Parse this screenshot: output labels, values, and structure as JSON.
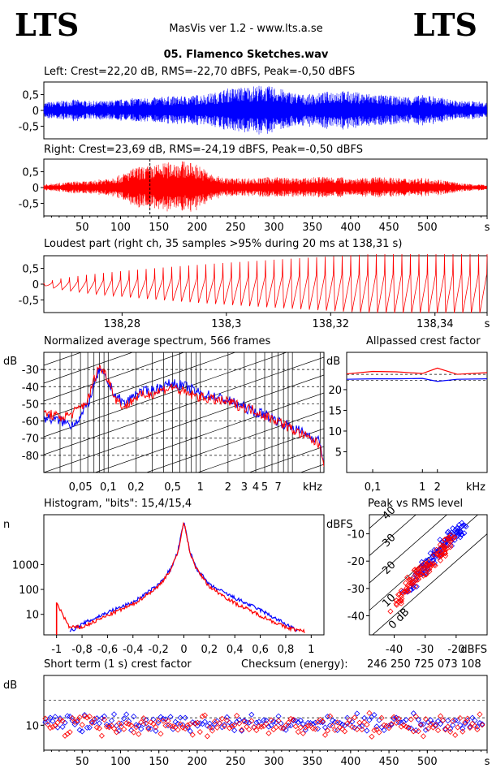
{
  "header": {
    "logo_left": "LTS",
    "logo_right": "LTS",
    "app_title": "MasVis ver 1.2 - www.lts.a.se",
    "file_name": "05. Flamenco Sketches.wav"
  },
  "colors": {
    "left": "#0000ff",
    "right": "#ff0000",
    "axis": "#000000"
  },
  "chart_data": [
    {
      "type": "line",
      "title": "Left: Crest=22,20 dB, RMS=-22,70 dBFS, Peak=-0,50 dBFS",
      "ytick_labels": [
        "0,5",
        "0",
        "-0,5"
      ],
      "yticks": [
        0.5,
        0,
        -0.5
      ],
      "ylim": [
        -0.9,
        0.9
      ],
      "xlim": [
        0,
        578
      ],
      "series": [
        {
          "color": "#0000ff",
          "envelope_x": [
            0,
            20,
            40,
            60,
            80,
            100,
            120,
            140,
            160,
            180,
            200,
            220,
            240,
            260,
            280,
            300,
            320,
            340,
            360,
            380,
            400,
            420,
            440,
            460,
            480,
            500,
            520,
            540,
            560,
            578
          ],
          "envelope_y": [
            0.25,
            0.3,
            0.35,
            0.3,
            0.3,
            0.35,
            0.4,
            0.4,
            0.45,
            0.45,
            0.5,
            0.55,
            0.7,
            0.75,
            0.8,
            0.75,
            0.6,
            0.5,
            0.55,
            0.65,
            0.6,
            0.55,
            0.5,
            0.45,
            0.45,
            0.5,
            0.4,
            0.3,
            0.3,
            0.25
          ]
        }
      ]
    },
    {
      "type": "line",
      "title": "Right: Crest=23,69 dB, RMS=-24,19 dBFS, Peak=-0,50 dBFS",
      "ytick_labels": [
        "0,5",
        "0",
        "-0,5"
      ],
      "yticks": [
        0.5,
        0,
        -0.5
      ],
      "ylim": [
        -0.9,
        0.9
      ],
      "xlim": [
        0,
        578
      ],
      "xtick_labels": [
        "50",
        "100",
        "150",
        "200",
        "250",
        "300",
        "350",
        "400",
        "450",
        "500",
        "s"
      ],
      "xticks": [
        50,
        100,
        150,
        200,
        250,
        300,
        350,
        400,
        450,
        500,
        578
      ],
      "marker_x": 138.31,
      "series": [
        {
          "color": "#ff0000",
          "envelope_x": [
            0,
            20,
            40,
            60,
            80,
            100,
            120,
            140,
            160,
            180,
            200,
            220,
            240,
            260,
            280,
            300,
            320,
            340,
            360,
            380,
            400,
            420,
            440,
            460,
            480,
            500,
            520,
            540,
            560,
            578
          ],
          "envelope_y": [
            0.1,
            0.15,
            0.2,
            0.2,
            0.3,
            0.4,
            0.65,
            0.7,
            0.8,
            0.85,
            0.75,
            0.4,
            0.3,
            0.3,
            0.3,
            0.35,
            0.3,
            0.3,
            0.35,
            0.35,
            0.3,
            0.3,
            0.35,
            0.3,
            0.3,
            0.3,
            0.25,
            0.15,
            0.1,
            0.1
          ]
        }
      ]
    },
    {
      "type": "line",
      "title": "Loudest part (right ch, 35 samples >95% during 20 ms at 138,31 s)",
      "ytick_labels": [
        "0,5",
        "0",
        "-0,5"
      ],
      "yticks": [
        0.5,
        0,
        -0.5
      ],
      "ylim": [
        -0.9,
        0.9
      ],
      "xlim": [
        138.265,
        138.35
      ],
      "xtick_labels": [
        "138,28",
        "138,3",
        "138,32",
        "138,34",
        "s"
      ],
      "xticks": [
        138.28,
        138.3,
        138.32,
        138.34,
        138.35
      ],
      "series": [
        {
          "color": "#ff0000",
          "amplitude_start": 0.02,
          "amplitude_end": 0.95
        }
      ]
    },
    {
      "type": "line",
      "title": "Normalized average spectrum, 566 frames",
      "ylabel": "dB",
      "ytick_labels": [
        "-30",
        "-40",
        "-50",
        "-60",
        "-70",
        "-80"
      ],
      "yticks": [
        -30,
        -40,
        -50,
        -60,
        -70,
        -80
      ],
      "ylim": [
        -90,
        -20
      ],
      "xscale": "log",
      "xtick_labels": [
        "0,05",
        "0,1",
        "0,2",
        "0,5",
        "1",
        "2",
        "3",
        "4",
        "5",
        "7",
        "kHz"
      ],
      "xticks": [
        0.05,
        0.1,
        0.2,
        0.5,
        1,
        2,
        3,
        4,
        5,
        7
      ],
      "xlim": [
        0.02,
        22
      ],
      "series": [
        {
          "name": "left",
          "color": "#0000ff",
          "x": [
            0.02,
            0.03,
            0.04,
            0.05,
            0.06,
            0.07,
            0.08,
            0.1,
            0.12,
            0.15,
            0.2,
            0.3,
            0.5,
            0.7,
            1,
            1.5,
            2,
            3,
            4,
            5,
            7,
            10,
            15,
            20,
            22
          ],
          "y": [
            -58,
            -60,
            -62,
            -58,
            -50,
            -40,
            -30,
            -38,
            -45,
            -50,
            -44,
            -42,
            -38,
            -40,
            -44,
            -46,
            -48,
            -52,
            -55,
            -56,
            -60,
            -64,
            -68,
            -72,
            -85
          ]
        },
        {
          "name": "right",
          "color": "#ff0000",
          "x": [
            0.02,
            0.03,
            0.04,
            0.05,
            0.06,
            0.07,
            0.08,
            0.1,
            0.12,
            0.15,
            0.2,
            0.3,
            0.5,
            0.7,
            1,
            1.5,
            2,
            3,
            4,
            5,
            7,
            10,
            15,
            20,
            22
          ],
          "y": [
            -55,
            -58,
            -56,
            -52,
            -48,
            -36,
            -28,
            -35,
            -47,
            -52,
            -46,
            -44,
            -40,
            -44,
            -46,
            -48,
            -49,
            -52,
            -54,
            -57,
            -60,
            -65,
            -70,
            -74,
            -84
          ]
        }
      ]
    },
    {
      "type": "line",
      "title": "Allpassed crest factor",
      "ylabel": "dB",
      "ytick_labels": [
        "20",
        "15",
        "10",
        "5"
      ],
      "yticks": [
        20,
        15,
        10,
        5
      ],
      "ylim": [
        0,
        29
      ],
      "xscale": "log",
      "xtick_labels": [
        "0,1",
        "1",
        "2",
        "kHz"
      ],
      "xticks": [
        0.1,
        1,
        2
      ],
      "xlim": [
        0.03,
        20
      ],
      "series": [
        {
          "name": "left",
          "color": "#0000ff",
          "x": [
            0.03,
            0.1,
            0.3,
            1,
            2,
            5,
            20
          ],
          "y": [
            22.5,
            22.6,
            22.6,
            22.7,
            22.0,
            22.5,
            22.6
          ]
        },
        {
          "name": "right",
          "color": "#ff0000",
          "x": [
            0.03,
            0.1,
            0.3,
            1,
            2,
            5,
            20
          ],
          "y": [
            23.8,
            24.4,
            24.3,
            23.9,
            25.2,
            23.7,
            24.1
          ]
        }
      ],
      "reference_lines": [
        22.2,
        23.69
      ]
    },
    {
      "type": "line",
      "title": "Histogram, \"bits\": 15,4/15,4",
      "ylabel": "n",
      "yscale": "log",
      "ytick_labels": [
        "1000",
        "100",
        "10"
      ],
      "yticks": [
        1000,
        100,
        10
      ],
      "ylim": [
        1.5,
        100000
      ],
      "xtick_labels": [
        "-1",
        "-0,8",
        "-0,6",
        "-0,4",
        "-0,2",
        "0",
        "0,2",
        "0,4",
        "0,6",
        "0,8",
        "1"
      ],
      "xticks": [
        -1,
        -0.8,
        -0.6,
        -0.4,
        -0.2,
        0,
        0.2,
        0.4,
        0.6,
        0.8,
        1
      ],
      "xlim": [
        -1.1,
        1.1
      ],
      "series": [
        {
          "name": "left",
          "color": "#0000ff",
          "x": [
            -0.9,
            -0.8,
            -0.6,
            -0.4,
            -0.2,
            -0.1,
            -0.05,
            0,
            0.05,
            0.1,
            0.2,
            0.4,
            0.6,
            0.8,
            0.9
          ],
          "y": [
            2,
            4,
            12,
            30,
            150,
            700,
            3000,
            50000,
            3000,
            700,
            150,
            45,
            15,
            4,
            2
          ]
        },
        {
          "name": "right",
          "color": "#ff0000",
          "x": [
            -1,
            -0.9,
            -0.8,
            -0.6,
            -0.4,
            -0.2,
            -0.1,
            -0.05,
            0,
            0.05,
            0.1,
            0.2,
            0.4,
            0.6,
            0.8,
            0.95
          ],
          "y": [
            30,
            3,
            3,
            9,
            25,
            130,
            650,
            2800,
            50000,
            2800,
            650,
            130,
            28,
            9,
            3,
            2
          ]
        }
      ]
    },
    {
      "type": "scatter",
      "title": "Peak vs RMS level",
      "ylabel": "dBFS",
      "xlabel": "dBFS",
      "ytick_labels": [
        "-10",
        "-20",
        "-30",
        "-40"
      ],
      "yticks": [
        -10,
        -20,
        -30,
        -40
      ],
      "ylim": [
        -47,
        -3
      ],
      "xtick_labels": [
        "-40",
        "-30",
        "-20"
      ],
      "xticks": [
        -40,
        -30,
        -20
      ],
      "xlim": [
        -48,
        -10
      ],
      "diagonal_labels": [
        "40",
        "30",
        "20",
        "10",
        "0 dB"
      ],
      "series": [
        {
          "name": "left",
          "color": "#0000ff",
          "x": [
            -38,
            -36,
            -34,
            -33,
            -32,
            -31,
            -30,
            -29,
            -28,
            -27,
            -26,
            -25,
            -24,
            -23,
            -22,
            -21,
            -20,
            -19,
            -18,
            -17
          ],
          "y": [
            -34,
            -30,
            -27,
            -28,
            -24,
            -23,
            -22,
            -21,
            -19,
            -18,
            -17,
            -15,
            -14,
            -14,
            -12,
            -11,
            -10,
            -9,
            -8,
            -6
          ]
        },
        {
          "name": "right",
          "color": "#ff0000",
          "x": [
            -41,
            -39,
            -37,
            -36,
            -35,
            -34,
            -33,
            -32,
            -31,
            -30,
            -29,
            -28,
            -27,
            -26,
            -25,
            -24,
            -23,
            -22,
            -21,
            -20
          ],
          "y": [
            -38,
            -34,
            -33,
            -30,
            -28,
            -29,
            -26,
            -24,
            -25,
            -22,
            -21,
            -21,
            -19,
            -18,
            -16,
            -16,
            -14,
            -13,
            -11,
            -9
          ]
        }
      ]
    },
    {
      "type": "scatter",
      "title": "Short term (1 s) crest factor",
      "checksum_label": "Checksum (energy):",
      "checksum_value": "246 250 725 073 108",
      "ylabel": "dB",
      "ytick_labels": [
        "10"
      ],
      "yticks": [
        10
      ],
      "ylim": [
        0,
        30
      ],
      "xtick_labels": [
        "50",
        "100",
        "150",
        "200",
        "250",
        "300",
        "350",
        "400",
        "450",
        "500",
        "s"
      ],
      "xticks": [
        50,
        100,
        150,
        200,
        250,
        300,
        350,
        400,
        450,
        500,
        578
      ],
      "xlim": [
        0,
        578
      ],
      "reference_lines": [
        13,
        20
      ],
      "series": [
        {
          "name": "left",
          "color": "#0000ff",
          "mean": 11,
          "spread": 4
        },
        {
          "name": "right",
          "color": "#ff0000",
          "mean": 10,
          "spread": 5
        }
      ]
    }
  ]
}
